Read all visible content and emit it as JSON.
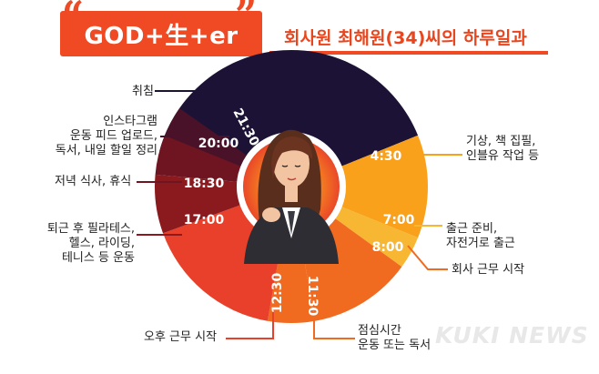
{
  "header": {
    "title": "GOD+生+er",
    "quote_open": "“",
    "quote_close": "”",
    "subtitle": "회사원 최해원(34)씨의 하루일과"
  },
  "schedule": {
    "times": [
      {
        "id": "t2130",
        "text": "21:30"
      },
      {
        "id": "t2000",
        "text": "20:00"
      },
      {
        "id": "t1830",
        "text": "18:30"
      },
      {
        "id": "t1700",
        "text": "17:00"
      },
      {
        "id": "t1230",
        "text": "12:30"
      },
      {
        "id": "t1130",
        "text": "11:30"
      },
      {
        "id": "t0430",
        "text": "4:30"
      },
      {
        "id": "t0700",
        "text": "7:00"
      },
      {
        "id": "t0800",
        "text": "8:00"
      }
    ],
    "activities": {
      "sleep": "취침",
      "instagram": "인스타그램\n운동 피드 업로드,\n독서, 내일 할일 정리",
      "dinner": "저녁 식사, 휴식",
      "after_work": "퇴근 후 필라테스,\n헬스, 라이딩,\n테니스 등 운동",
      "afternoon": "오후 근무 시작",
      "lunch": "점심시간\n운동 또는 독서",
      "wake": "기상, 책 집필,\n인블유 작업 등",
      "commute": "출근 준비,\n자전거로 출근",
      "work": "회사 근무 시작"
    }
  },
  "colors": {
    "accent": "#ef4a23",
    "sleep": "#1c1236",
    "evening1": "#4a1228",
    "evening2": "#6e1521",
    "evening3": "#8b1a1f",
    "afternoon": "#e8402a",
    "lunch": "#f06a1f",
    "morning": "#f9a11b",
    "commute": "#f7b733"
  },
  "watermark": "KUKI NEWS"
}
